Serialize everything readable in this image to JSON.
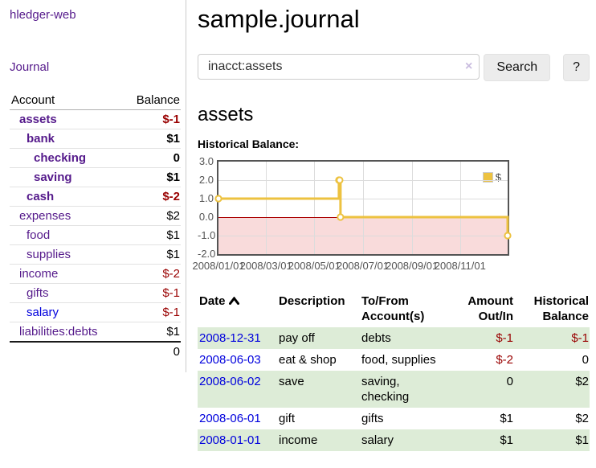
{
  "app": {
    "title": "hledger-web"
  },
  "nav": {
    "journal": "Journal"
  },
  "sidebar": {
    "accounts_header": {
      "account": "Account",
      "balance": "Balance"
    },
    "accounts": [
      {
        "name": "assets",
        "indent": 1,
        "bold": true,
        "balance": "$-1",
        "negative": true
      },
      {
        "name": "bank",
        "indent": 2,
        "bold": true,
        "balance": "$1",
        "negative": false
      },
      {
        "name": "checking",
        "indent": 3,
        "bold": true,
        "balance": "0",
        "negative": false
      },
      {
        "name": "saving",
        "indent": 3,
        "bold": true,
        "balance": "$1",
        "negative": false
      },
      {
        "name": "cash",
        "indent": 2,
        "bold": true,
        "balance": "$-2",
        "negative": true
      },
      {
        "name": "expenses",
        "indent": 1,
        "bold": false,
        "balance": "$2",
        "negative": false
      },
      {
        "name": "food",
        "indent": 2,
        "bold": false,
        "balance": "$1",
        "negative": false
      },
      {
        "name": "supplies",
        "indent": 2,
        "bold": false,
        "balance": "$1",
        "negative": false
      },
      {
        "name": "income",
        "indent": 1,
        "bold": false,
        "balance": "$-2",
        "negative": true
      },
      {
        "name": "gifts",
        "indent": 2,
        "bold": false,
        "balance": "$-1",
        "negative": true
      },
      {
        "name": "salary",
        "indent": 2,
        "bold": false,
        "balance": "$-1",
        "negative": true,
        "unvisited": true
      },
      {
        "name": "liabilities:debts",
        "indent": 1,
        "bold": false,
        "balance": "$1",
        "negative": false
      }
    ],
    "total": "0"
  },
  "header": {
    "title": "sample.journal"
  },
  "search": {
    "value": "inacct:assets",
    "clear_icon": "×",
    "button_label": "Search",
    "help_label": "?"
  },
  "account_page": {
    "heading": "assets",
    "chart_title": "Historical Balance:"
  },
  "chart_data": {
    "type": "line",
    "step": true,
    "title": "Historical Balance",
    "legend": "$",
    "legend_position": "top-right",
    "series": [
      {
        "name": "$",
        "color": "#edc240",
        "points": [
          [
            "2008-01-01",
            1
          ],
          [
            "2008-06-01",
            2
          ],
          [
            "2008-06-02",
            2
          ],
          [
            "2008-06-03",
            0
          ],
          [
            "2008-12-31",
            -1
          ]
        ]
      }
    ],
    "xlim": [
      "2008-01-01",
      "2008-12-31"
    ],
    "ylim": [
      -2,
      3
    ],
    "y_ticks": [
      3.0,
      2.0,
      1.0,
      0.0,
      -1.0,
      -2.0
    ],
    "x_ticks": [
      "2008/01/01",
      "2008/03/01",
      "2008/05/01",
      "2008/07/01",
      "2008/09/01",
      "2008/11/01"
    ],
    "grid": true,
    "negative_region_color": "#f9dbdb",
    "zero_line_color": "#aa0000"
  },
  "register": {
    "columns": [
      "Date",
      "Description",
      "To/From Account(s)",
      "Amount Out/In",
      "Historical Balance"
    ],
    "sort": {
      "column": "Date",
      "direction": "ascending"
    },
    "rows": [
      {
        "date": "2008-12-31",
        "description": "pay off",
        "accounts": "debts",
        "amount": "$-1",
        "amount_negative": true,
        "balance": "$-1",
        "balance_negative": true
      },
      {
        "date": "2008-06-03",
        "description": "eat & shop",
        "accounts": "food, supplies",
        "amount": "$-2",
        "amount_negative": true,
        "balance": "0",
        "balance_negative": false
      },
      {
        "date": "2008-06-02",
        "description": "save",
        "accounts": "saving, checking",
        "amount": "0",
        "amount_negative": false,
        "balance": "$2",
        "balance_negative": false
      },
      {
        "date": "2008-06-01",
        "description": "gift",
        "accounts": "gifts",
        "amount": "$1",
        "amount_negative": false,
        "balance": "$2",
        "balance_negative": false
      },
      {
        "date": "2008-01-01",
        "description": "income",
        "accounts": "salary",
        "amount": "$1",
        "amount_negative": false,
        "balance": "$1",
        "balance_negative": false
      }
    ]
  },
  "colors": {
    "link_purple": "#551a8b",
    "link_blue": "#0000dd",
    "negative_red": "#990000",
    "row_green": "#ddecd7",
    "series_gold": "#edc240",
    "negative_region_pink": "#f9dbdb",
    "zero_line_red": "#aa0000",
    "chart_border_gray": "#545454"
  }
}
